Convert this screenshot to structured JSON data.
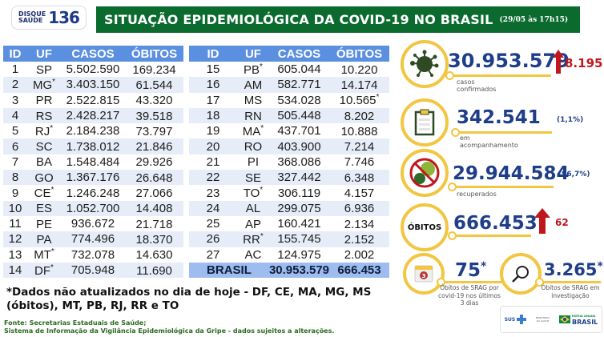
{
  "header": {
    "logo_line1": "DISQUE",
    "logo_line2": "SAÚDE",
    "logo_number": "136",
    "title": "SITUAÇÃO EPIDEMIOLÓGICA DA COVID-19 NO BRASIL",
    "date": "(29/05 às 17h15)",
    "title_bg_color": "#0b6a2e"
  },
  "table": {
    "columns": [
      "ID",
      "UF",
      "CASOS",
      "ÓBITOS"
    ],
    "left_rows": [
      {
        "id": "1",
        "uf": "SP",
        "uf_mark": "",
        "casos": "5.502.590",
        "obitos": "169.234",
        "ob_mark": ""
      },
      {
        "id": "2",
        "uf": "MG",
        "uf_mark": "*",
        "casos": "3.403.150",
        "obitos": "61.544",
        "ob_mark": ""
      },
      {
        "id": "3",
        "uf": "PR",
        "uf_mark": "",
        "casos": "2.522.815",
        "obitos": "43.320",
        "ob_mark": ""
      },
      {
        "id": "4",
        "uf": "RS",
        "uf_mark": "",
        "casos": "2.428.217",
        "obitos": "39.518",
        "ob_mark": ""
      },
      {
        "id": "5",
        "uf": "RJ",
        "uf_mark": "*",
        "casos": "2.184.238",
        "obitos": "73.797",
        "ob_mark": ""
      },
      {
        "id": "6",
        "uf": "SC",
        "uf_mark": "",
        "casos": "1.738.012",
        "obitos": "21.846",
        "ob_mark": ""
      },
      {
        "id": "7",
        "uf": "BA",
        "uf_mark": "",
        "casos": "1.548.484",
        "obitos": "29.926",
        "ob_mark": ""
      },
      {
        "id": "8",
        "uf": "GO",
        "uf_mark": "",
        "casos": "1.367.176",
        "obitos": "26.648",
        "ob_mark": ""
      },
      {
        "id": "9",
        "uf": "CE",
        "uf_mark": "*",
        "casos": "1.246.248",
        "obitos": "27.066",
        "ob_mark": ""
      },
      {
        "id": "10",
        "uf": "ES",
        "uf_mark": "",
        "casos": "1.052.700",
        "obitos": "14.408",
        "ob_mark": ""
      },
      {
        "id": "11",
        "uf": "PE",
        "uf_mark": "",
        "casos": "936.672",
        "obitos": "21.718",
        "ob_mark": ""
      },
      {
        "id": "12",
        "uf": "PA",
        "uf_mark": "",
        "casos": "774.496",
        "obitos": "18.370",
        "ob_mark": ""
      },
      {
        "id": "13",
        "uf": "MT",
        "uf_mark": "*",
        "casos": "732.078",
        "obitos": "14.630",
        "ob_mark": ""
      },
      {
        "id": "14",
        "uf": "DF",
        "uf_mark": "*",
        "casos": "705.948",
        "obitos": "11.690",
        "ob_mark": ""
      }
    ],
    "right_rows": [
      {
        "id": "15",
        "uf": "PB",
        "uf_mark": "*",
        "casos": "605.044",
        "obitos": "10.220",
        "ob_mark": ""
      },
      {
        "id": "16",
        "uf": "AM",
        "uf_mark": "",
        "casos": "582.771",
        "obitos": "14.174",
        "ob_mark": ""
      },
      {
        "id": "17",
        "uf": "MS",
        "uf_mark": "",
        "casos": "534.028",
        "obitos": "10.565",
        "ob_mark": "*"
      },
      {
        "id": "18",
        "uf": "RN",
        "uf_mark": "",
        "casos": "505.448",
        "obitos": "8.202",
        "ob_mark": ""
      },
      {
        "id": "19",
        "uf": "MA",
        "uf_mark": "*",
        "casos": "437.701",
        "obitos": "10.888",
        "ob_mark": ""
      },
      {
        "id": "20",
        "uf": "RO",
        "uf_mark": "",
        "casos": "403.900",
        "obitos": "7.214",
        "ob_mark": ""
      },
      {
        "id": "21",
        "uf": "PI",
        "uf_mark": "",
        "casos": "368.086",
        "obitos": "7.746",
        "ob_mark": ""
      },
      {
        "id": "22",
        "uf": "SE",
        "uf_mark": "",
        "casos": "327.442",
        "obitos": "6.348",
        "ob_mark": ""
      },
      {
        "id": "23",
        "uf": "TO",
        "uf_mark": "*",
        "casos": "306.119",
        "obitos": "4.157",
        "ob_mark": ""
      },
      {
        "id": "24",
        "uf": "AL",
        "uf_mark": "",
        "casos": "299.075",
        "obitos": "6.936",
        "ob_mark": ""
      },
      {
        "id": "25",
        "uf": "AP",
        "uf_mark": "",
        "casos": "160.421",
        "obitos": "2.134",
        "ob_mark": ""
      },
      {
        "id": "26",
        "uf": "RR",
        "uf_mark": "*",
        "casos": "155.745",
        "obitos": "2.152",
        "ob_mark": ""
      },
      {
        "id": "27",
        "uf": "AC",
        "uf_mark": "",
        "casos": "124.975",
        "obitos": "2.002",
        "ob_mark": ""
      }
    ],
    "total": {
      "label": "BRASIL",
      "casos": "30.953.579",
      "obitos": "666.453"
    },
    "header_color": "#5b8fe0",
    "stripe_color": "#e7edf8",
    "total_color": "#9dbcf0"
  },
  "stats": {
    "confirmed": {
      "value": "30.953.579",
      "delta": "8.195",
      "label": "casos confirmados",
      "icon": "virus-icon"
    },
    "monitoring": {
      "value": "342.541",
      "pct": "(1,1%)",
      "label": "em acompanhamento",
      "icon": "clipboard-icon"
    },
    "recovered": {
      "value": "29.944.584",
      "pct": "(96,7%)",
      "label": "recuperados",
      "icon": "no-virus-icon"
    },
    "deaths": {
      "badge": "ÓBITOS",
      "value": "666.453",
      "delta": "62"
    },
    "srag_recent": {
      "value": "75",
      "mark": "*",
      "label": "Óbitos de SRAG por covid-19 nos últimos 3 dias",
      "icon_number": "3",
      "icon": "calendar-icon"
    },
    "srag_investigation": {
      "value": "3.265",
      "mark": "*",
      "label": "Óbitos de SRAG em investigação",
      "icon": "magnifier-icon"
    }
  },
  "footnote": "*Dados não atualizados no dia de hoje - DF, CE, MA, MG, MS (óbitos), MT, PB, RJ, RR e TO",
  "source": {
    "line1": "Fonte: Secretarias Estaduais de Saúde;",
    "line2": "Sistema de Informação da Vigilância Epidemiológica da Gripe - dados sujeitos a alterações."
  },
  "footer_logos": {
    "sus": "SUS",
    "ministry": "MINISTÉRIO DA SAÚDE",
    "gov_top": "PÁTRIA AMADA",
    "gov": "BRASIL"
  },
  "colors": {
    "accent_yellow": "#f2c641",
    "number_blue": "#1f3e8a",
    "delta_red": "#c0161d"
  }
}
